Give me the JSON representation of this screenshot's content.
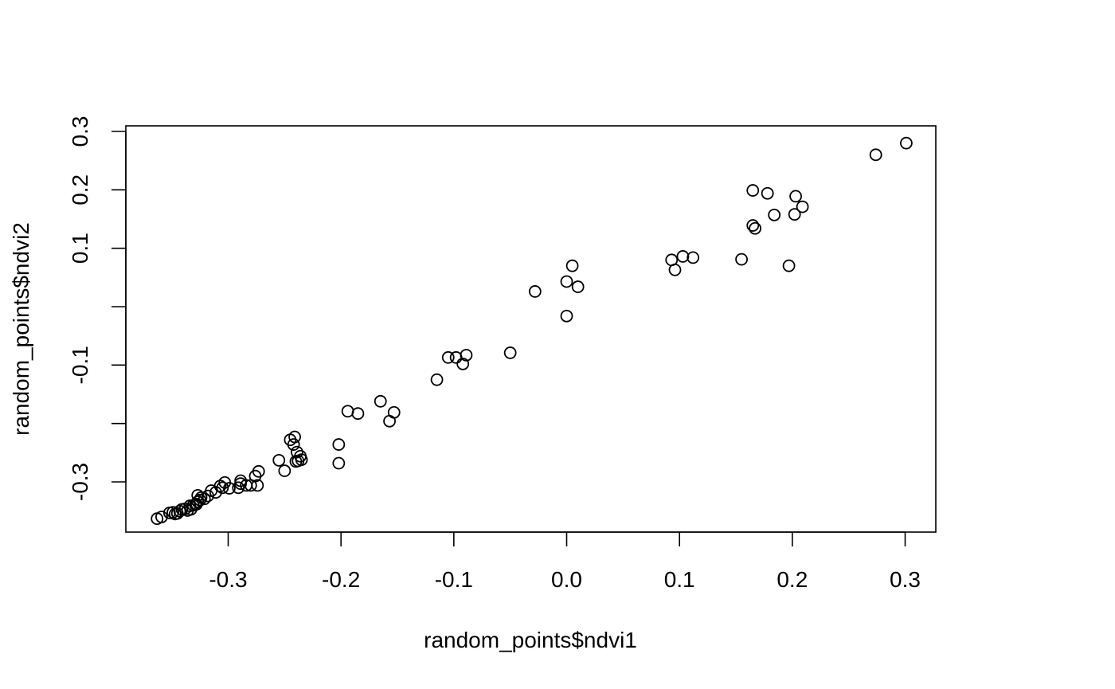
{
  "chart_data": {
    "type": "scatter",
    "title": "",
    "xlabel": "random_points$ndvi1",
    "ylabel": "random_points$ndvi2",
    "xlim": [
      -0.39,
      0.33
    ],
    "ylim": [
      -0.385,
      0.31
    ],
    "x_ticks": [
      -0.3,
      -0.2,
      -0.1,
      0.0,
      0.1,
      0.2,
      0.3
    ],
    "x_tick_labels": [
      "-0.3",
      "-0.2",
      "-0.1",
      "0.0",
      "0.1",
      "0.2",
      "0.3"
    ],
    "y_ticks": [
      -0.3,
      -0.2,
      -0.1,
      0.0,
      0.1,
      0.2,
      0.3
    ],
    "y_tick_labels": [
      "-0.3",
      "",
      "-0.1",
      "",
      "0.1",
      "0.2",
      "0.3"
    ],
    "grid": false,
    "marker": "open-circle",
    "color": "#000000",
    "points": [
      [
        -0.363,
        -0.363
      ],
      [
        -0.359,
        -0.36
      ],
      [
        -0.352,
        -0.353
      ],
      [
        -0.349,
        -0.352
      ],
      [
        -0.347,
        -0.355
      ],
      [
        -0.345,
        -0.354
      ],
      [
        -0.343,
        -0.35
      ],
      [
        -0.341,
        -0.347
      ],
      [
        -0.338,
        -0.346
      ],
      [
        -0.336,
        -0.349
      ],
      [
        -0.334,
        -0.341
      ],
      [
        -0.333,
        -0.347
      ],
      [
        -0.331,
        -0.34
      ],
      [
        -0.329,
        -0.339
      ],
      [
        -0.328,
        -0.338
      ],
      [
        -0.327,
        -0.334
      ],
      [
        -0.327,
        -0.323
      ],
      [
        -0.325,
        -0.331
      ],
      [
        -0.324,
        -0.327
      ],
      [
        -0.321,
        -0.329
      ],
      [
        -0.318,
        -0.324
      ],
      [
        -0.315,
        -0.315
      ],
      [
        -0.311,
        -0.318
      ],
      [
        -0.307,
        -0.307
      ],
      [
        -0.305,
        -0.31
      ],
      [
        -0.303,
        -0.301
      ],
      [
        -0.299,
        -0.311
      ],
      [
        -0.291,
        -0.31
      ],
      [
        -0.289,
        -0.303
      ],
      [
        -0.289,
        -0.298
      ],
      [
        -0.284,
        -0.306
      ],
      [
        -0.28,
        -0.306
      ],
      [
        -0.276,
        -0.29
      ],
      [
        -0.274,
        -0.306
      ],
      [
        -0.273,
        -0.282
      ],
      [
        -0.255,
        -0.263
      ],
      [
        -0.25,
        -0.281
      ],
      [
        -0.245,
        -0.228
      ],
      [
        -0.242,
        -0.236
      ],
      [
        -0.241,
        -0.223
      ],
      [
        -0.24,
        -0.265
      ],
      [
        -0.239,
        -0.249
      ],
      [
        -0.238,
        -0.264
      ],
      [
        -0.236,
        -0.256
      ],
      [
        -0.235,
        -0.262
      ],
      [
        -0.202,
        -0.236
      ],
      [
        -0.202,
        -0.268
      ],
      [
        -0.194,
        -0.179
      ],
      [
        -0.185,
        -0.183
      ],
      [
        -0.165,
        -0.162
      ],
      [
        -0.157,
        -0.196
      ],
      [
        -0.153,
        -0.181
      ],
      [
        -0.115,
        -0.125
      ],
      [
        -0.105,
        -0.087
      ],
      [
        -0.098,
        -0.087
      ],
      [
        -0.092,
        -0.098
      ],
      [
        -0.089,
        -0.083
      ],
      [
        -0.05,
        -0.079
      ],
      [
        -0.028,
        0.026
      ],
      [
        0.0,
        0.043
      ],
      [
        0.0,
        -0.016
      ],
      [
        0.005,
        0.07
      ],
      [
        0.01,
        0.034
      ],
      [
        0.093,
        0.08
      ],
      [
        0.096,
        0.063
      ],
      [
        0.103,
        0.086
      ],
      [
        0.112,
        0.084
      ],
      [
        0.155,
        0.081
      ],
      [
        0.165,
        0.199
      ],
      [
        0.165,
        0.139
      ],
      [
        0.167,
        0.134
      ],
      [
        0.178,
        0.194
      ],
      [
        0.184,
        0.157
      ],
      [
        0.197,
        0.07
      ],
      [
        0.202,
        0.158
      ],
      [
        0.203,
        0.189
      ],
      [
        0.209,
        0.171
      ],
      [
        0.274,
        0.26
      ],
      [
        0.301,
        0.28
      ]
    ]
  }
}
